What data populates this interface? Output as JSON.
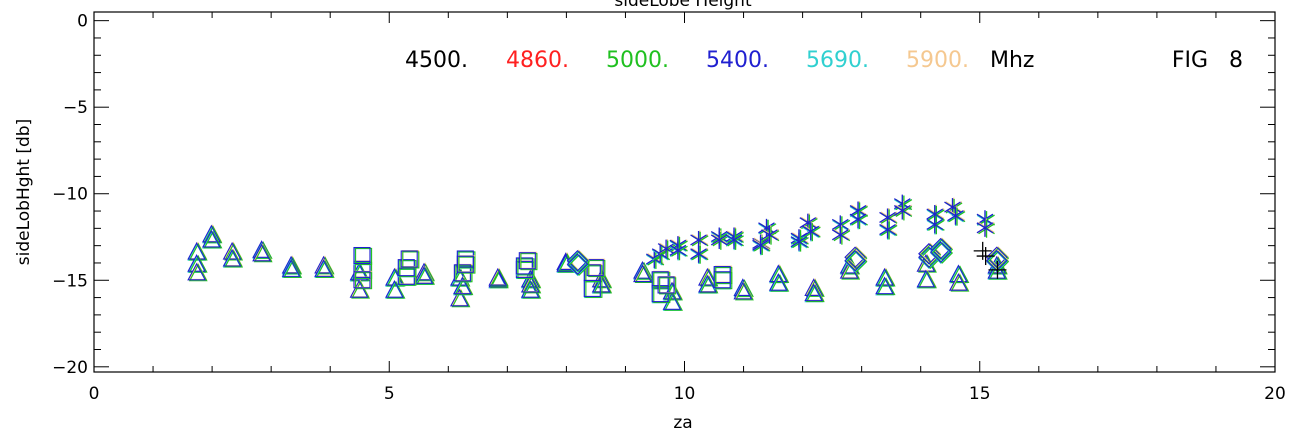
{
  "chart_data": {
    "type": "scatter",
    "title": "sideLobe Height",
    "xlabel": "za",
    "ylabel": "sideLobHght [db]",
    "xlim": [
      0,
      20
    ],
    "ylim": [
      -20.3,
      0.5
    ],
    "x_ticks": [
      0,
      5,
      10,
      15,
      20
    ],
    "x_tick_labels": [
      "0",
      "5",
      "10",
      "15",
      "20"
    ],
    "y_ticks": [
      0,
      -5,
      -10,
      -15,
      -20
    ],
    "y_tick_labels": [
      "0",
      "−5",
      "−10",
      "−15",
      "−20"
    ],
    "grid": false,
    "frequency_legend": {
      "placement": "top",
      "entries": [
        {
          "label": "4500.",
          "color": "#000000"
        },
        {
          "label": "4860.",
          "color": "#ff2020"
        },
        {
          "label": "5000.",
          "color": "#20c020"
        },
        {
          "label": "5400.",
          "color": "#2020d0"
        },
        {
          "label": "5690.",
          "color": "#30d0d0"
        },
        {
          "label": "5900.",
          "color": "#f5c890"
        }
      ],
      "unit": "Mhz"
    },
    "annotation": "FIG   8",
    "series": [
      {
        "marker": "triangle",
        "points": [
          [
            1.75,
            -13.4
          ],
          [
            1.75,
            -14.1
          ],
          [
            1.75,
            -14.6
          ],
          [
            2.0,
            -12.4
          ],
          [
            2.0,
            -12.7
          ],
          [
            2.35,
            -13.4
          ],
          [
            2.35,
            -13.8
          ],
          [
            2.85,
            -13.3
          ],
          [
            2.85,
            -13.5
          ],
          [
            3.35,
            -14.2
          ],
          [
            3.35,
            -14.4
          ],
          [
            3.9,
            -14.2
          ],
          [
            3.9,
            -14.4
          ],
          [
            4.5,
            -14.6
          ],
          [
            4.5,
            -15.6
          ],
          [
            5.1,
            -14.9
          ],
          [
            5.1,
            -15.6
          ],
          [
            5.6,
            -14.6
          ],
          [
            5.6,
            -14.8
          ],
          [
            6.2,
            -14.9
          ],
          [
            6.2,
            -16.1
          ],
          [
            6.25,
            -15.4
          ],
          [
            6.85,
            -15.0
          ],
          [
            6.85,
            -14.9
          ],
          [
            7.4,
            -15.0
          ],
          [
            7.4,
            -15.6
          ],
          [
            7.4,
            -15.3
          ],
          [
            8.0,
            -14.0
          ],
          [
            8.0,
            -14.1
          ],
          [
            8.6,
            -15.0
          ],
          [
            8.6,
            -15.3
          ],
          [
            9.3,
            -14.5
          ],
          [
            9.3,
            -14.7
          ],
          [
            9.8,
            -15.7
          ],
          [
            9.8,
            -16.3
          ],
          [
            10.4,
            -14.9
          ],
          [
            10.4,
            -15.3
          ],
          [
            11.0,
            -15.5
          ],
          [
            11.0,
            -15.7
          ],
          [
            11.6,
            -14.7
          ],
          [
            11.6,
            -15.2
          ],
          [
            12.2,
            -15.5
          ],
          [
            12.2,
            -15.8
          ],
          [
            12.8,
            -14.2
          ],
          [
            12.8,
            -14.5
          ],
          [
            13.4,
            -14.9
          ],
          [
            13.4,
            -15.4
          ],
          [
            14.1,
            -14.1
          ],
          [
            14.1,
            -15.0
          ],
          [
            14.65,
            -14.7
          ],
          [
            14.65,
            -15.2
          ],
          [
            15.3,
            -14.2
          ],
          [
            15.3,
            -14.5
          ]
        ]
      },
      {
        "marker": "square",
        "points": [
          [
            4.55,
            -14.4
          ],
          [
            4.55,
            -13.6
          ],
          [
            4.55,
            -15.0
          ],
          [
            5.3,
            -14.8
          ],
          [
            5.3,
            -14.3
          ],
          [
            5.35,
            -13.8
          ],
          [
            6.25,
            -14.6
          ],
          [
            6.3,
            -13.8
          ],
          [
            6.3,
            -14.1
          ],
          [
            7.3,
            -14.4
          ],
          [
            7.3,
            -14.2
          ],
          [
            7.35,
            -13.9
          ],
          [
            8.45,
            -14.6
          ],
          [
            8.45,
            -15.5
          ],
          [
            8.5,
            -14.3
          ],
          [
            9.6,
            -15.0
          ],
          [
            9.6,
            -15.8
          ],
          [
            9.7,
            -15.3
          ],
          [
            10.65,
            -14.7
          ],
          [
            10.65,
            -15.0
          ]
        ]
      },
      {
        "marker": "diamond",
        "points": [
          [
            8.2,
            -13.9
          ],
          [
            8.2,
            -14.1
          ],
          [
            12.9,
            -13.7
          ],
          [
            12.9,
            -13.9
          ],
          [
            14.15,
            -13.7
          ],
          [
            14.15,
            -13.5
          ],
          [
            14.35,
            -13.2
          ],
          [
            14.35,
            -13.4
          ],
          [
            15.3,
            -13.7
          ],
          [
            15.3,
            -13.9
          ]
        ]
      },
      {
        "marker": "asterisk",
        "points": [
          [
            9.5,
            -13.8
          ],
          [
            9.6,
            -13.5
          ],
          [
            9.7,
            -13.2
          ],
          [
            9.9,
            -13.0
          ],
          [
            9.9,
            -13.3
          ],
          [
            10.25,
            -12.7
          ],
          [
            10.25,
            -13.5
          ],
          [
            10.6,
            -12.5
          ],
          [
            10.6,
            -12.7
          ],
          [
            10.85,
            -12.5
          ],
          [
            10.85,
            -12.7
          ],
          [
            11.3,
            -12.9
          ],
          [
            11.3,
            -13.0
          ],
          [
            11.4,
            -12.0
          ],
          [
            11.45,
            -12.4
          ],
          [
            11.95,
            -12.6
          ],
          [
            11.95,
            -12.8
          ],
          [
            12.1,
            -11.7
          ],
          [
            12.15,
            -12.2
          ],
          [
            12.65,
            -11.8
          ],
          [
            12.65,
            -12.4
          ],
          [
            12.95,
            -11.0
          ],
          [
            12.95,
            -11.5
          ],
          [
            13.45,
            -11.4
          ],
          [
            13.45,
            -12.1
          ],
          [
            13.7,
            -10.6
          ],
          [
            13.7,
            -11.0
          ],
          [
            14.25,
            -11.2
          ],
          [
            14.25,
            -11.8
          ],
          [
            14.55,
            -10.8
          ],
          [
            14.6,
            -11.3
          ],
          [
            15.1,
            -11.5
          ],
          [
            15.1,
            -12.0
          ]
        ]
      },
      {
        "marker": "plus",
        "points": [
          [
            15.05,
            -13.3
          ],
          [
            15.1,
            -13.6
          ],
          [
            15.3,
            -14.4
          ]
        ]
      }
    ]
  }
}
